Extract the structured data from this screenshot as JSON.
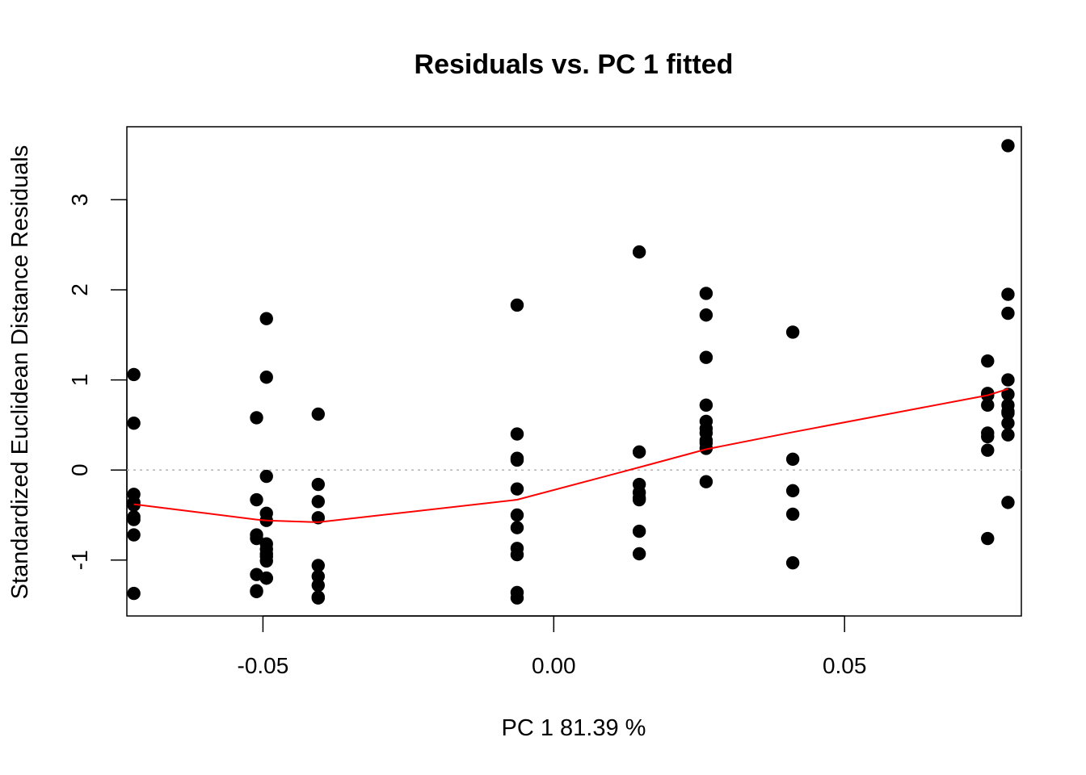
{
  "chart_data": {
    "type": "scatter",
    "title": "Residuals vs. PC 1 fitted",
    "xlabel": "PC 1 81.39 %",
    "ylabel": "Standardized Euclidean Distance Residuals",
    "xlim": [
      -0.0734,
      0.0804
    ],
    "ylim": [
      -1.62,
      3.81
    ],
    "x_ticks": [
      {
        "value": -0.05,
        "label": "-0.05"
      },
      {
        "value": 0.0,
        "label": "0.00"
      },
      {
        "value": 0.05,
        "label": "0.05"
      }
    ],
    "y_ticks": [
      {
        "value": -1,
        "label": "-1"
      },
      {
        "value": 0,
        "label": "0"
      },
      {
        "value": 1,
        "label": "1"
      },
      {
        "value": 2,
        "label": "2"
      },
      {
        "value": 3,
        "label": "3"
      }
    ],
    "grid": false,
    "reference_line": {
      "y": 0,
      "style": "dotted",
      "color": "#b3b3b3"
    },
    "series": [
      {
        "type": "scatter",
        "color": "#000000",
        "x": [
          -0.0722,
          -0.0722,
          -0.0722,
          -0.0722,
          -0.0722,
          -0.0722,
          -0.0722,
          -0.0722,
          -0.0722,
          -0.0511,
          -0.0511,
          -0.0511,
          -0.0511,
          -0.0511,
          -0.0511,
          -0.0511,
          -0.0494,
          -0.0494,
          -0.0494,
          -0.0494,
          -0.0494,
          -0.0494,
          -0.0494,
          -0.0494,
          -0.0494,
          -0.0494,
          -0.0494,
          -0.0494,
          -0.0405,
          -0.0405,
          -0.0405,
          -0.0405,
          -0.0405,
          -0.0405,
          -0.0405,
          -0.0405,
          -0.0405,
          -0.0063,
          -0.0063,
          -0.0063,
          -0.0063,
          -0.0063,
          -0.0063,
          -0.0063,
          -0.0063,
          -0.0063,
          -0.0063,
          -0.0063,
          0.0147,
          0.0147,
          0.0147,
          0.0147,
          0.0147,
          0.0147,
          0.0147,
          0.0147,
          0.0262,
          0.0262,
          0.0262,
          0.0262,
          0.0262,
          0.0262,
          0.0262,
          0.0262,
          0.0262,
          0.0262,
          0.0262,
          0.0411,
          0.0411,
          0.0411,
          0.0411,
          0.0411,
          0.0746,
          0.0746,
          0.0746,
          0.0746,
          0.0746,
          0.0746,
          0.0746,
          0.0746,
          0.0781,
          0.0781,
          0.0781,
          0.0781,
          0.0781,
          0.0781,
          0.0781,
          0.0781,
          0.0781,
          0.0781,
          0.0781
        ],
        "y": [
          1.06,
          0.52,
          -0.27,
          -0.36,
          -0.39,
          -0.52,
          -0.55,
          -0.72,
          -1.37,
          0.58,
          -0.33,
          -0.72,
          -0.76,
          -1.16,
          -1.34,
          -1.35,
          1.68,
          1.03,
          -0.07,
          -0.48,
          -0.56,
          -0.82,
          -0.88,
          -0.93,
          -0.96,
          -1.01,
          -1.2,
          -1.2,
          0.62,
          -0.16,
          -0.35,
          -0.53,
          -1.06,
          -1.18,
          -1.28,
          -1.41,
          -1.42,
          1.83,
          0.13,
          0.11,
          -0.21,
          -0.5,
          -0.64,
          -0.87,
          -0.94,
          -1.36,
          -1.42,
          0.4,
          0.2,
          -0.16,
          -0.25,
          -0.31,
          -0.33,
          -0.68,
          -0.93,
          2.42,
          1.96,
          1.25,
          0.72,
          0.54,
          0.46,
          0.41,
          0.33,
          0.3,
          0.24,
          -0.13,
          1.72,
          0.12,
          -0.23,
          -0.49,
          -1.03,
          1.53,
          1.21,
          0.85,
          0.83,
          0.72,
          0.41,
          0.37,
          0.22,
          -0.76,
          3.6,
          1.95,
          1.74,
          1.0,
          0.84,
          0.72,
          0.65,
          0.63,
          0.52,
          0.39,
          -0.36
        ]
      },
      {
        "type": "line",
        "color": "#ff0000",
        "x": [
          -0.0722,
          -0.0511,
          -0.0494,
          -0.0405,
          -0.0063,
          0.0147,
          0.0262,
          0.0411,
          0.0746,
          0.0781
        ],
        "y": [
          -0.38,
          -0.55,
          -0.56,
          -0.58,
          -0.33,
          0.03,
          0.23,
          0.42,
          0.83,
          0.9
        ]
      }
    ]
  }
}
